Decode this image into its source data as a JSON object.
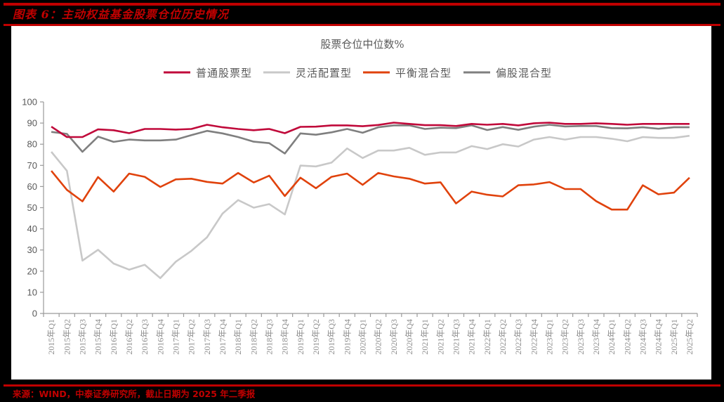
{
  "header": {
    "figure_title": "图表 6：主动权益基金股票仓位历史情况"
  },
  "footer": {
    "source": "来源：WIND，中泰证券研究所，截止日期为 2025 年二季报"
  },
  "colors": {
    "frame_red": "#c00000",
    "background": "#000000",
    "panel": "#ffffff",
    "axis": "#9a9a9a"
  },
  "chart_data": {
    "type": "line",
    "title": "股票仓位中位数%",
    "xlabel": "",
    "ylabel": "",
    "ylim": [
      0,
      100
    ],
    "yticks": [
      0,
      10,
      20,
      30,
      40,
      50,
      60,
      70,
      80,
      90,
      100
    ],
    "grid": false,
    "legend_position": "top",
    "categories": [
      "2015年Q1",
      "2015年Q2",
      "2015年Q3",
      "2015年Q4",
      "2016年Q1",
      "2016年Q2",
      "2016年Q3",
      "2016年Q4",
      "2017年Q1",
      "2017年Q2",
      "2017年Q3",
      "2017年Q4",
      "2018年Q1",
      "2018年Q2",
      "2018年Q3",
      "2018年Q4",
      "2019年Q1",
      "2019年Q2",
      "2019年Q3",
      "2019年Q4",
      "2020年Q1",
      "2020年Q2",
      "2020年Q3",
      "2020年Q4",
      "2021年Q1",
      "2021年Q2",
      "2021年Q3",
      "2021年Q4",
      "2022年Q1",
      "2022年Q2",
      "2022年Q3",
      "2022年Q4",
      "2023年Q1",
      "2023年Q2",
      "2023年Q3",
      "2023年Q4",
      "2024年Q1",
      "2024年Q2",
      "2024年Q3",
      "2024年Q4",
      "2025年Q1",
      "2025年Q2"
    ],
    "series": [
      {
        "name": "普通股票型",
        "color": "#c0093a",
        "values": [
          88.3,
          83.4,
          83.4,
          87.0,
          86.6,
          85.2,
          87.2,
          87.2,
          86.9,
          87.2,
          89.2,
          88.0,
          87.2,
          86.6,
          87.2,
          85.2,
          88.2,
          88.3,
          88.9,
          88.9,
          88.5,
          89.1,
          90.2,
          89.6,
          89.0,
          89.0,
          88.6,
          89.6,
          89.2,
          89.6,
          88.9,
          89.9,
          90.2,
          89.6,
          89.6,
          89.9,
          89.6,
          89.2,
          89.6,
          89.6,
          89.6,
          89.6
        ]
      },
      {
        "name": "灵活配置型",
        "color": "#c8c8c8",
        "values": [
          76.4,
          67.4,
          25.0,
          30.1,
          23.6,
          20.7,
          23.0,
          16.7,
          24.5,
          29.6,
          36.0,
          47.2,
          53.6,
          50.0,
          51.7,
          46.8,
          69.9,
          69.5,
          71.3,
          78.0,
          73.5,
          77.0,
          77.0,
          78.3,
          75.0,
          76.1,
          76.1,
          79.1,
          77.7,
          80.0,
          78.9,
          82.2,
          83.4,
          82.2,
          83.4,
          83.4,
          82.6,
          81.4,
          83.4,
          83.0,
          83.0,
          84.0
        ]
      },
      {
        "name": "平衡混合型",
        "color": "#e0420c",
        "values": [
          67.4,
          58.4,
          53.0,
          64.5,
          57.6,
          66.1,
          64.6,
          59.8,
          63.4,
          63.7,
          62.2,
          61.4,
          66.4,
          61.9,
          65.1,
          55.5,
          64.2,
          59.2,
          64.6,
          66.1,
          60.8,
          66.4,
          64.8,
          63.7,
          61.4,
          62.0,
          52.0,
          57.6,
          56.1,
          55.3,
          60.6,
          61.0,
          62.1,
          58.8,
          58.8,
          53.1,
          49.1,
          49.1,
          60.6,
          56.3,
          57.1,
          64.2
        ]
      },
      {
        "name": "偏股混合型",
        "color": "#7f7f7f",
        "values": [
          85.8,
          84.9,
          76.4,
          83.6,
          81.1,
          82.2,
          81.8,
          81.8,
          82.2,
          84.3,
          86.3,
          85.1,
          83.4,
          81.2,
          80.5,
          75.6,
          85.1,
          84.5,
          85.6,
          87.2,
          85.4,
          88.0,
          88.9,
          88.9,
          87.2,
          87.8,
          87.6,
          88.9,
          86.7,
          88.1,
          86.8,
          88.3,
          89.2,
          88.4,
          88.6,
          88.6,
          87.6,
          87.5,
          88.0,
          87.3,
          88.0,
          88.0
        ]
      }
    ]
  }
}
